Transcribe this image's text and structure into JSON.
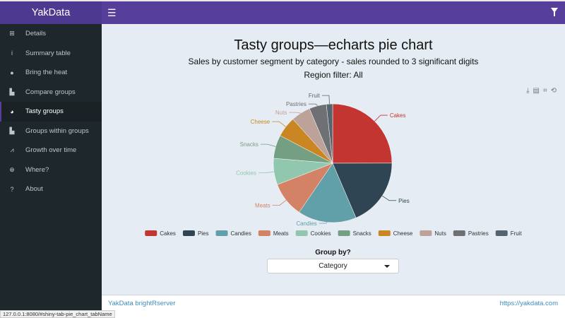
{
  "header": {
    "brand": "YakData brightRserver",
    "menu_icon": "hamburger-icon",
    "filter_icon": "filter-icon"
  },
  "sidebar": {
    "items": [
      {
        "label": "Details",
        "icon": "table-icon",
        "glyph": "⊞"
      },
      {
        "label": "Summary table",
        "icon": "info-icon",
        "glyph": "i"
      },
      {
        "label": "Bring the heat",
        "icon": "fire-icon",
        "glyph": "●"
      },
      {
        "label": "Compare groups",
        "icon": "bar-chart-icon",
        "glyph": "▙"
      },
      {
        "label": "Tasty groups",
        "icon": "pie-chart-icon",
        "glyph": "◕",
        "active": true
      },
      {
        "label": "Groups within groups",
        "icon": "bar-chart-icon",
        "glyph": "▙"
      },
      {
        "label": "Growth over time",
        "icon": "line-chart-icon",
        "glyph": "⩘"
      },
      {
        "label": "Where?",
        "icon": "globe-icon",
        "glyph": "⊕"
      },
      {
        "label": "About",
        "icon": "question-icon",
        "glyph": "?"
      }
    ]
  },
  "chart_data": {
    "type": "pie",
    "title": "Tasty groups—echarts pie chart",
    "subtitle": "Sales by customer segment by category - sales rounded to 3 significant digits",
    "filter_text": "Region filter: All",
    "legend_position": "bottom",
    "categories": [
      "Cakes",
      "Pies",
      "Candies",
      "Meats",
      "Cookies",
      "Snacks",
      "Cheese",
      "Nuts",
      "Pastries",
      "Fruit"
    ],
    "values": [
      25,
      18.6,
      16,
      9.6,
      7.2,
      6.4,
      5.6,
      5.3,
      4.7,
      1.7
    ],
    "colors": [
      "#c23531",
      "#2f4554",
      "#61a0a8",
      "#d48265",
      "#91c7ae",
      "#749f83",
      "#ca8622",
      "#bda29a",
      "#6e7074",
      "#546570"
    ]
  },
  "toolbox": [
    "download-icon",
    "data-view-icon",
    "zoom-icon",
    "restore-icon"
  ],
  "controls": {
    "group_by_label": "Group by?",
    "group_by_value": "Category"
  },
  "footer": {
    "left": "YakData brightRserver",
    "right": "https://yakdata.com"
  },
  "status_bar": "127.0.0.1:8080/#shiny-tab-pie_chart_tabName"
}
